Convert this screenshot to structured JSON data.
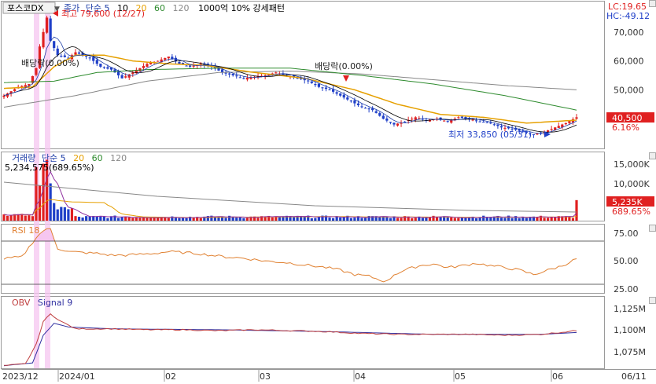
{
  "header": {
    "symbol": "포스코DX",
    "series_labels": [
      {
        "text": "종가",
        "color": "#1f3fa8"
      },
      {
        "text": "단순 5",
        "color": "#1f3fa8"
      },
      {
        "text": "10",
        "color": "#000000"
      },
      {
        "text": "20",
        "color": "#e6a000"
      },
      {
        "text": "60",
        "color": "#2e8b2e"
      },
      {
        "text": "120",
        "color": "#888888"
      }
    ],
    "strategy_label": "1000억 10% 강세패턴",
    "lc": "LC:19.65",
    "hc": "HC:-49.12"
  },
  "annotations": {
    "high": "최고 79,600 (12/27)",
    "low": "최저 33,850 (05/31)",
    "div1": "배당락(0.00%)",
    "div2": "배당락(0.00%)",
    "price_current": "40,500",
    "price_change": "6.16%",
    "vol_title": [
      "거래량",
      "단순 5",
      "20",
      "60",
      "120"
    ],
    "vol_peak": "5,234,575(689.65%)",
    "vol_current": "5,235K",
    "vol_change": "689.65%",
    "rsi_label": "RSI 18",
    "obv_label": "OBV",
    "obv_signal": "Signal 9"
  },
  "axes": {
    "price_ticks": [
      "70,000",
      "60,000",
      "50,000"
    ],
    "volume_ticks": [
      "15,000K",
      "10,000K"
    ],
    "rsi_ticks": [
      "75.00",
      "50.00",
      "25.00"
    ],
    "obv_ticks": [
      "1,125M",
      "1,100M",
      "1,075M"
    ],
    "x_labels": [
      "2023/12",
      "2024/01",
      "02",
      "03",
      "04",
      "05",
      "06",
      "06/11"
    ]
  },
  "colors": {
    "up": "#e02020",
    "down": "#1f3fc8",
    "ma5": "#1f3fa8",
    "ma10": "#000000",
    "ma20": "#e6a000",
    "ma60": "#2e8b2e",
    "ma120": "#888888",
    "highlight": "#f6c6f0",
    "rsi": "#e08030",
    "obv": "#c04040",
    "signal": "#3030a0"
  },
  "chart_data": {
    "type": "candlestick",
    "x_range": [
      "2023-12-18",
      "2024-06-11"
    ],
    "price_ylim": [
      30000,
      80000
    ],
    "high": {
      "value": 79600,
      "date": "12/27"
    },
    "low": {
      "value": 33850,
      "date": "05/31"
    },
    "last_close": 40500,
    "close_path": [
      [
        0,
        48000
      ],
      [
        4,
        51000
      ],
      [
        7,
        52000
      ],
      [
        9,
        57500
      ],
      [
        10,
        65000
      ],
      [
        11,
        70000
      ],
      [
        12,
        75000
      ],
      [
        13,
        67000
      ],
      [
        15,
        62000
      ],
      [
        18,
        61000
      ],
      [
        20,
        63000
      ],
      [
        24,
        61000
      ],
      [
        27,
        58000
      ],
      [
        30,
        57000
      ],
      [
        33,
        54000
      ],
      [
        36,
        56000
      ],
      [
        40,
        59000
      ],
      [
        43,
        60000
      ],
      [
        46,
        61500
      ],
      [
        49,
        59000
      ],
      [
        52,
        58000
      ],
      [
        55,
        59000
      ],
      [
        58,
        58000
      ],
      [
        61,
        56000
      ],
      [
        64,
        55000
      ],
      [
        67,
        54000
      ],
      [
        70,
        54500
      ],
      [
        73,
        55000
      ],
      [
        76,
        56000
      ],
      [
        79,
        55000
      ],
      [
        82,
        54000
      ],
      [
        85,
        53000
      ],
      [
        88,
        51000
      ],
      [
        91,
        50000
      ],
      [
        94,
        48000
      ],
      [
        97,
        46000
      ],
      [
        100,
        44000
      ],
      [
        103,
        43000
      ],
      [
        106,
        40000
      ],
      [
        109,
        38000
      ],
      [
        112,
        39000
      ],
      [
        115,
        40500
      ],
      [
        118,
        39500
      ],
      [
        121,
        40000
      ],
      [
        124,
        39000
      ],
      [
        127,
        40500
      ],
      [
        130,
        40000
      ],
      [
        133,
        39000
      ],
      [
        136,
        38500
      ],
      [
        139,
        37000
      ],
      [
        142,
        36500
      ],
      [
        145,
        35500
      ],
      [
        148,
        34500
      ],
      [
        151,
        35500
      ],
      [
        154,
        37000
      ],
      [
        157,
        38500
      ],
      [
        160,
        40500
      ]
    ],
    "ma20_path": [
      [
        0,
        50500
      ],
      [
        8,
        51000
      ],
      [
        14,
        58000
      ],
      [
        20,
        62000
      ],
      [
        28,
        62000
      ],
      [
        36,
        60000
      ],
      [
        46,
        59000
      ],
      [
        56,
        58500
      ],
      [
        70,
        56000
      ],
      [
        84,
        54000
      ],
      [
        98,
        50000
      ],
      [
        110,
        45000
      ],
      [
        122,
        41500
      ],
      [
        134,
        40500
      ],
      [
        146,
        38500
      ],
      [
        160,
        39500
      ]
    ],
    "ma60_path": [
      [
        0,
        52500
      ],
      [
        14,
        53000
      ],
      [
        26,
        56000
      ],
      [
        40,
        57000
      ],
      [
        60,
        57500
      ],
      [
        80,
        57500
      ],
      [
        100,
        55000
      ],
      [
        120,
        52000
      ],
      [
        140,
        48000
      ],
      [
        160,
        43000
      ]
    ],
    "ma120_path": [
      [
        0,
        44000
      ],
      [
        20,
        48000
      ],
      [
        40,
        53000
      ],
      [
        60,
        56000
      ],
      [
        80,
        56500
      ],
      [
        100,
        55500
      ],
      [
        120,
        53500
      ],
      [
        140,
        51500
      ],
      [
        160,
        50000
      ]
    ],
    "volume_ylim": [
      0,
      17000
    ],
    "volume_peak": 5234575,
    "volume_last": 5235,
    "rsi_ylim": [
      10,
      85
    ],
    "rsi_path": [
      [
        0,
        48
      ],
      [
        5,
        50
      ],
      [
        9,
        72
      ],
      [
        11,
        80
      ],
      [
        13,
        82
      ],
      [
        15,
        60
      ],
      [
        18,
        56
      ],
      [
        22,
        55
      ],
      [
        26,
        54
      ],
      [
        30,
        52
      ],
      [
        34,
        52
      ],
      [
        38,
        53
      ],
      [
        42,
        54
      ],
      [
        46,
        56
      ],
      [
        50,
        55
      ],
      [
        54,
        54
      ],
      [
        58,
        52
      ],
      [
        62,
        50
      ],
      [
        66,
        49
      ],
      [
        70,
        47
      ],
      [
        74,
        45
      ],
      [
        78,
        44
      ],
      [
        82,
        42
      ],
      [
        86,
        40
      ],
      [
        90,
        38
      ],
      [
        94,
        35
      ],
      [
        98,
        30
      ],
      [
        102,
        28
      ],
      [
        105,
        24
      ],
      [
        107,
        22
      ],
      [
        109,
        30
      ],
      [
        112,
        35
      ],
      [
        116,
        40
      ],
      [
        120,
        42
      ],
      [
        124,
        38
      ],
      [
        128,
        40
      ],
      [
        132,
        43
      ],
      [
        136,
        40
      ],
      [
        140,
        38
      ],
      [
        144,
        35
      ],
      [
        148,
        30
      ],
      [
        152,
        35
      ],
      [
        156,
        40
      ],
      [
        160,
        48
      ]
    ],
    "obv_ylim": [
      1060,
      1135
    ],
    "obv_path": [
      [
        0,
        1062
      ],
      [
        6,
        1064
      ],
      [
        9,
        1085
      ],
      [
        11,
        1110
      ],
      [
        13,
        1118
      ],
      [
        16,
        1110
      ],
      [
        20,
        1102
      ],
      [
        30,
        1102
      ],
      [
        40,
        1101
      ],
      [
        50,
        1101
      ],
      [
        60,
        1100
      ],
      [
        70,
        1101
      ],
      [
        80,
        1100
      ],
      [
        90,
        1099
      ],
      [
        100,
        1097
      ],
      [
        110,
        1096
      ],
      [
        120,
        1096
      ],
      [
        130,
        1096
      ],
      [
        140,
        1095
      ],
      [
        150,
        1096
      ],
      [
        160,
        1100
      ]
    ],
    "signal_path": [
      [
        0,
        1062
      ],
      [
        8,
        1065
      ],
      [
        11,
        1095
      ],
      [
        14,
        1108
      ],
      [
        18,
        1104
      ],
      [
        30,
        1102
      ],
      [
        60,
        1101
      ],
      [
        90,
        1099
      ],
      [
        120,
        1096
      ],
      [
        150,
        1096
      ],
      [
        160,
        1098
      ]
    ]
  }
}
